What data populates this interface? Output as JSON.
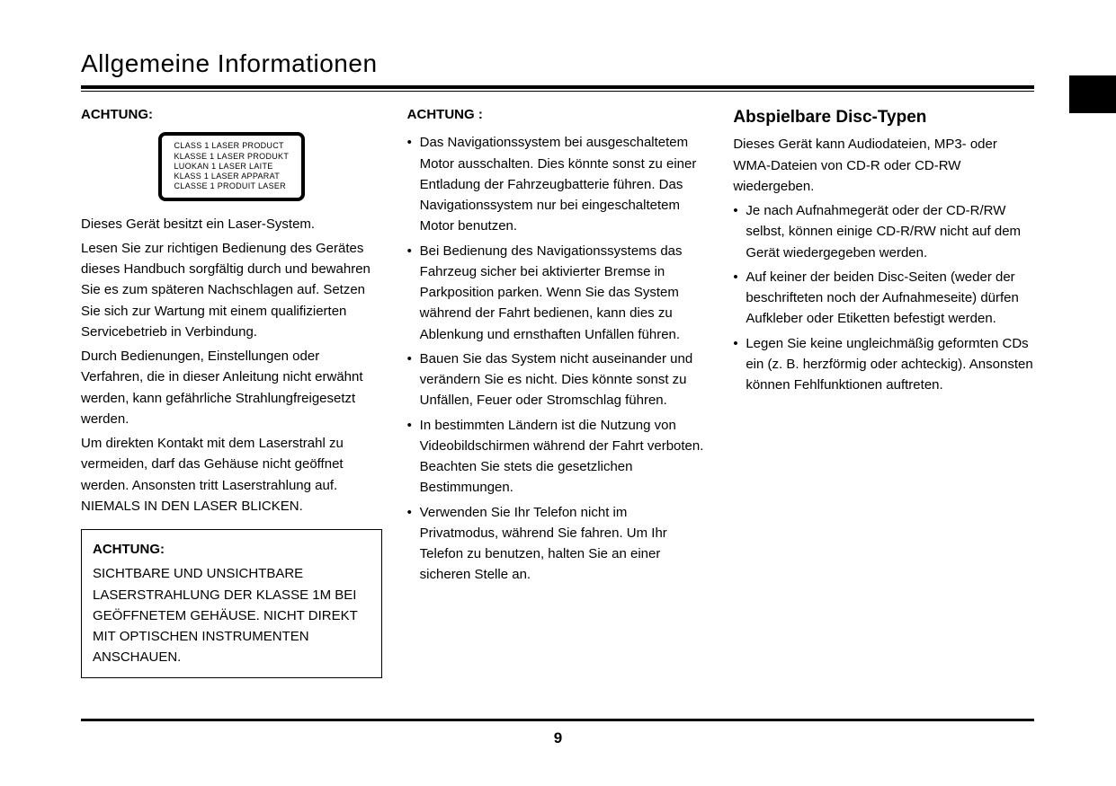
{
  "page": {
    "title": "Allgemeine Informationen",
    "number": "9"
  },
  "col1": {
    "achtung_label": "ACHTUNG:",
    "laser_label_lines": [
      "CLASS 1 LASER PRODUCT",
      "KLASSE 1 LASER PRODUKT",
      "LUOKAN 1 LASER LAITE",
      "KLASS 1 LASER APPARAT",
      "CLASSE 1 PRODUIT LASER"
    ],
    "paragraphs": [
      "Dieses Gerät besitzt ein Laser-System.",
      "Lesen Sie zur richtigen Bedienung des Gerätes dieses Handbuch sorgfältig durch und bewahren Sie es zum späteren Nachschlagen auf. Setzen Sie sich zur Wartung mit einem qualifizierten Servicebetrieb in Verbindung.",
      "Durch Bedienungen, Einstellungen oder Verfahren, die in dieser Anleitung nicht erwähnt werden, kann gefährliche Strahlungfreigesetzt werden.",
      "Um direkten Kontakt mit dem Laserstrahl zu vermeiden, darf das Gehäuse nicht geöffnet werden. Ansonsten tritt Laserstrahlung auf. NIEMALS IN DEN LASER BLICKEN."
    ],
    "box": {
      "label": "ACHTUNG:",
      "text": "SICHTBARE UND UNSICHTBARE LASERSTRAHLUNG DER KLASSE 1M BEI GEÖFFNETEM GEHÄUSE. NICHT DIREKT MIT OPTISCHEN INSTRUMENTEN ANSCHAUEN."
    }
  },
  "col2": {
    "achtung_label": "ACHTUNG :",
    "bullets": [
      "Das Navigationssystem bei ausgeschaltetem Motor ausschalten. Dies könnte sonst zu einer Entladung der Fahrzeugbatterie führen. Das Navigationssystem nur bei eingeschaltetem Motor benutzen.",
      "Bei Bedienung des Navigationssystems das Fahrzeug sicher bei aktivierter Bremse in Parkposition parken. Wenn Sie das System während der Fahrt bedienen, kann dies zu Ablenkung und ernsthaften Unfällen führen.",
      "Bauen Sie das System nicht auseinander und verändern Sie es nicht. Dies könnte sonst zu Unfällen, Feuer oder Stromschlag führen.",
      "In bestimmten Ländern ist die Nutzung von Videobildschirmen während der Fahrt verboten. Beachten Sie stets die gesetzlichen Bestimmungen.",
      "Verwenden Sie Ihr Telefon nicht im Privatmodus, während Sie fahren. Um Ihr Telefon zu benutzen, halten Sie an einer sicheren Stelle an."
    ]
  },
  "col3": {
    "heading": "Abspielbare Disc-Typen",
    "intro": "Dieses Gerät kann Audiodateien, MP3- oder WMA-Dateien von CD-R oder CD-RW wiedergeben.",
    "bullets": [
      "Je nach Aufnahmegerät oder der CD-R/RW selbst, können einige CD-R/RW nicht auf dem Gerät wiedergegeben werden.",
      "Auf keiner der beiden Disc-Seiten (weder der beschrifteten noch der Aufnahmeseite) dürfen Aufkleber oder Etiketten befestigt werden.",
      "Legen Sie keine ungleichmäßig geformten CDs ein (z. B. herzförmig oder achteckig). Ansonsten können Fehlfunktionen auftreten."
    ]
  },
  "colors": {
    "text": "#000000",
    "background": "#ffffff",
    "rule": "#000000"
  },
  "typography": {
    "title_fontsize": 28,
    "body_fontsize": 15,
    "section_head_fontsize": 19,
    "laser_label_fontsize": 9,
    "page_number_fontsize": 17,
    "font_family": "Century Gothic / Futura-like geometric sans"
  }
}
